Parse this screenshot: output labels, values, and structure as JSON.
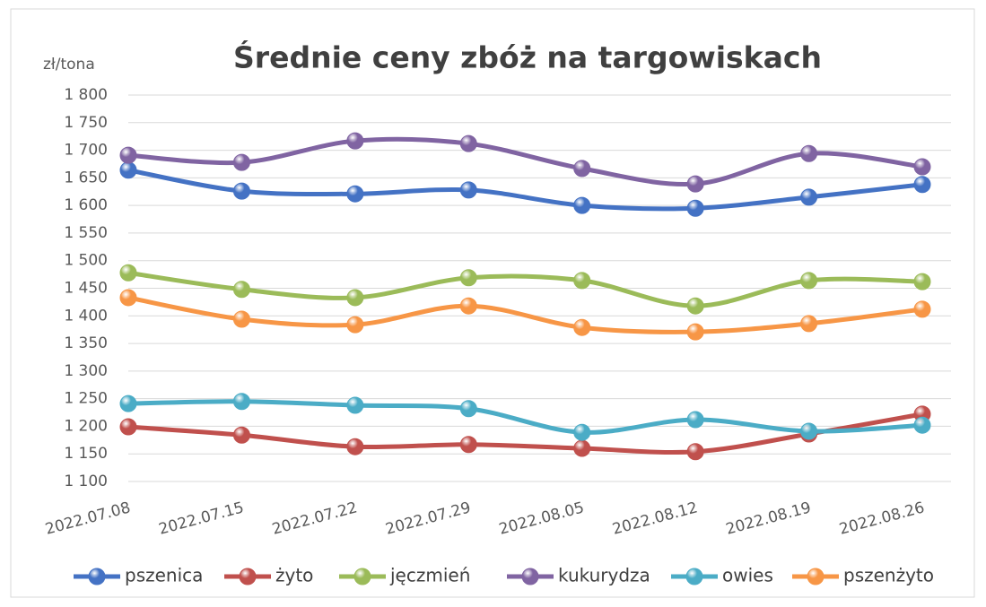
{
  "chart_data": {
    "type": "line",
    "title": "Średnie ceny zbóż na targowiskach",
    "y_label": "zł/tona",
    "categories": [
      "2022.07.08",
      "2022.07.15",
      "2022.07.22",
      "2022.07.29",
      "2022.08.05",
      "2022.08.12",
      "2022.08.19",
      "2022.08.26"
    ],
    "series": [
      {
        "name": "pszenica",
        "color": "#4472c4",
        "values": [
          1664,
          1626,
          1621,
          1628,
          1600,
          1595,
          1615,
          1638
        ]
      },
      {
        "name": "żyto",
        "color": "#c0504d",
        "values": [
          1199,
          1184,
          1163,
          1167,
          1160,
          1154,
          1186,
          1222
        ]
      },
      {
        "name": "jęczmień",
        "color": "#9bbb59",
        "values": [
          1478,
          1448,
          1433,
          1469,
          1464,
          1418,
          1464,
          1462
        ]
      },
      {
        "name": "kukurydza",
        "color": "#8064a2",
        "values": [
          1691,
          1678,
          1717,
          1712,
          1667,
          1639,
          1694,
          1670
        ]
      },
      {
        "name": "owies",
        "color": "#4bacc6",
        "values": [
          1241,
          1245,
          1238,
          1232,
          1189,
          1212,
          1191,
          1202
        ]
      },
      {
        "name": "pszenżyto",
        "color": "#f79646",
        "values": [
          1433,
          1394,
          1384,
          1418,
          1379,
          1371,
          1386,
          1412
        ]
      }
    ],
    "ylim": [
      1100,
      1800
    ],
    "yticks": [
      {
        "value": 1100,
        "label": "1 100"
      },
      {
        "value": 1150,
        "label": "1 150"
      },
      {
        "value": 1200,
        "label": "1 200"
      },
      {
        "value": 1250,
        "label": "1 250"
      },
      {
        "value": 1300,
        "label": "1 300"
      },
      {
        "value": 1350,
        "label": "1 350"
      },
      {
        "value": 1400,
        "label": "1 400"
      },
      {
        "value": 1450,
        "label": "1 450"
      },
      {
        "value": 1500,
        "label": "1 500"
      },
      {
        "value": 1550,
        "label": "1 550"
      },
      {
        "value": 1600,
        "label": "1 600"
      },
      {
        "value": 1650,
        "label": "1 650"
      },
      {
        "value": 1700,
        "label": "1 700"
      },
      {
        "value": 1750,
        "label": "1 750"
      },
      {
        "value": 1800,
        "label": "1 800"
      }
    ],
    "grid": true,
    "smooth": true,
    "legend": "bottom"
  }
}
